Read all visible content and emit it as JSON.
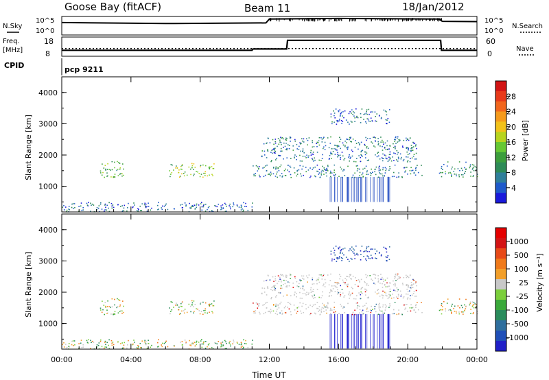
{
  "header": {
    "station": "Goose Bay (fitACF)",
    "beam": "Beam 11",
    "date": "18/Jan/2012"
  },
  "top_panels": {
    "nsky_label": "N.Sky",
    "nsky_ticks": [
      "10^5",
      "10^0"
    ],
    "nsearch_label": "N.Search",
    "nsearch_ticks": [
      "10^5",
      "10^0"
    ],
    "freq_label": "Freq.",
    "freq_unit": "[MHz]",
    "freq_ticks": [
      "18",
      "8"
    ],
    "nave_label": "Nave",
    "nave_ticks": [
      "60",
      "0"
    ],
    "cpid_label": "CPID",
    "cpid_value": "pcp 9211"
  },
  "colors": {
    "power_scale": [
      "#1a1adb",
      "#1e5acb",
      "#2f7f9a",
      "#2e8b57",
      "#3c9e3c",
      "#66c833",
      "#b8d41e",
      "#f2c21a",
      "#f59a1c",
      "#f2661d",
      "#e83a1a",
      "#d21414"
    ],
    "velocity_scale": [
      "#2020c8",
      "#1f4fb8",
      "#2f6f9e",
      "#2a8c5c",
      "#3aa93a",
      "#7bcf3b",
      "#c8c8c8",
      "#f29f2a",
      "#f07a1a",
      "#e84a18",
      "#d41414",
      "#e50000"
    ]
  },
  "chart_data": [
    {
      "type": "heatmap",
      "name": "power",
      "ylabel": "Slant Range [km]",
      "yticks": [
        "1000",
        "2000",
        "3000",
        "4000"
      ],
      "ylim": [
        180,
        4500
      ],
      "xlim": [
        0,
        24
      ],
      "colorbar": {
        "label": "Power [dB]",
        "ticks": [
          "4",
          "8",
          "12",
          "16",
          "20",
          "24",
          "28"
        ],
        "range": [
          0,
          32
        ]
      }
    },
    {
      "type": "heatmap",
      "name": "velocity",
      "ylabel": "Slant Range [km]",
      "yticks": [
        "1000",
        "2000",
        "3000",
        "4000"
      ],
      "ylim": [
        180,
        4500
      ],
      "xlim": [
        0,
        24
      ],
      "xlabel": "Time UT",
      "xticks": [
        "00:00",
        "04:00",
        "08:00",
        "12:00",
        "16:00",
        "20:00",
        "00:00"
      ],
      "colorbar": {
        "label": "Velocity [m s⁻¹]",
        "ticks": [
          "1000",
          "500",
          "100",
          "25",
          "-25",
          "-100",
          "-500",
          "-1000"
        ]
      }
    }
  ],
  "nsky_series": [
    {
      "t": 0.0,
      "v": 3.5
    },
    {
      "t": 6.0,
      "v": 3.2
    },
    {
      "t": 11.8,
      "v": 3.4
    },
    {
      "t": 12.0,
      "v": 4.6
    },
    {
      "t": 16.0,
      "v": 4.8
    },
    {
      "t": 21.8,
      "v": 4.6
    },
    {
      "t": 22.0,
      "v": 3.9
    },
    {
      "t": 24.0,
      "v": 3.8
    }
  ],
  "freq_series": [
    {
      "t": 0.0,
      "v": 10.8
    },
    {
      "t": 11.0,
      "v": 10.8
    },
    {
      "t": 11.05,
      "v": 11.6
    },
    {
      "t": 13.0,
      "v": 11.6
    },
    {
      "t": 13.05,
      "v": 16.8
    },
    {
      "t": 21.9,
      "v": 16.8
    },
    {
      "t": 21.95,
      "v": 10.8
    },
    {
      "t": 24.0,
      "v": 10.8
    }
  ],
  "nave_level": 23,
  "echo_regions": [
    {
      "t0": 2.2,
      "t1": 3.6,
      "r0": 1300,
      "r1": 1850,
      "p": 12
    },
    {
      "t0": 6.2,
      "t1": 8.8,
      "r0": 1300,
      "r1": 1750,
      "p": 14
    },
    {
      "t0": 11.0,
      "t1": 20.8,
      "r0": 1300,
      "r1": 1700,
      "p": 6
    },
    {
      "t0": 11.5,
      "t1": 20.5,
      "r0": 1800,
      "r1": 2600,
      "p": 5
    },
    {
      "t0": 21.8,
      "t1": 24.0,
      "r0": 1300,
      "r1": 1800,
      "p": 7
    },
    {
      "t0": 15.5,
      "t1": 19.0,
      "r0": 3000,
      "r1": 3500,
      "p": 4
    },
    {
      "t0": 0.0,
      "t1": 11.0,
      "r0": 200,
      "r1": 500,
      "p": 4
    }
  ]
}
